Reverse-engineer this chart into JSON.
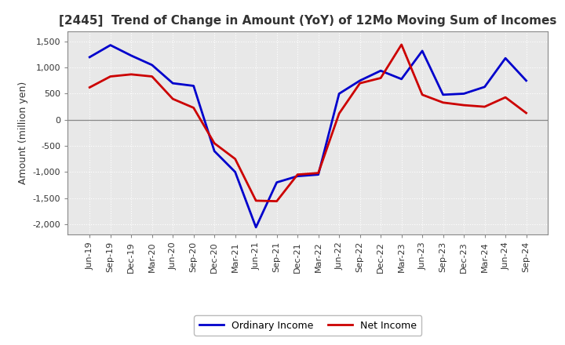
{
  "title": "[2445]  Trend of Change in Amount (YoY) of 12Mo Moving Sum of Incomes",
  "ylabel": "Amount (million yen)",
  "background_color": "#ffffff",
  "plot_bg_color": "#e8e8e8",
  "grid_color": "#ffffff",
  "labels": [
    "Jun-19",
    "Sep-19",
    "Dec-19",
    "Mar-20",
    "Jun-20",
    "Sep-20",
    "Dec-20",
    "Mar-21",
    "Jun-21",
    "Sep-21",
    "Dec-21",
    "Mar-22",
    "Jun-22",
    "Sep-22",
    "Dec-22",
    "Mar-23",
    "Jun-23",
    "Sep-23",
    "Dec-23",
    "Mar-24",
    "Jun-24",
    "Sep-24"
  ],
  "ordinary_income": [
    1200,
    1430,
    1230,
    1050,
    700,
    650,
    -600,
    -1000,
    -2060,
    -1200,
    -1080,
    -1050,
    500,
    750,
    940,
    780,
    1320,
    480,
    500,
    630,
    1180,
    750
  ],
  "net_income": [
    620,
    830,
    870,
    830,
    400,
    230,
    -450,
    -750,
    -1550,
    -1560,
    -1050,
    -1020,
    120,
    700,
    800,
    1440,
    480,
    330,
    280,
    250,
    430,
    130
  ],
  "ordinary_income_color": "#0000cc",
  "net_income_color": "#cc0000",
  "ylim": [
    -2200,
    1700
  ],
  "yticks": [
    -2000,
    -1500,
    -1000,
    -500,
    0,
    500,
    1000,
    1500
  ],
  "legend_labels": [
    "Ordinary Income",
    "Net Income"
  ],
  "line_width": 2.0,
  "title_fontsize": 11,
  "tick_fontsize": 8,
  "ylabel_fontsize": 9
}
